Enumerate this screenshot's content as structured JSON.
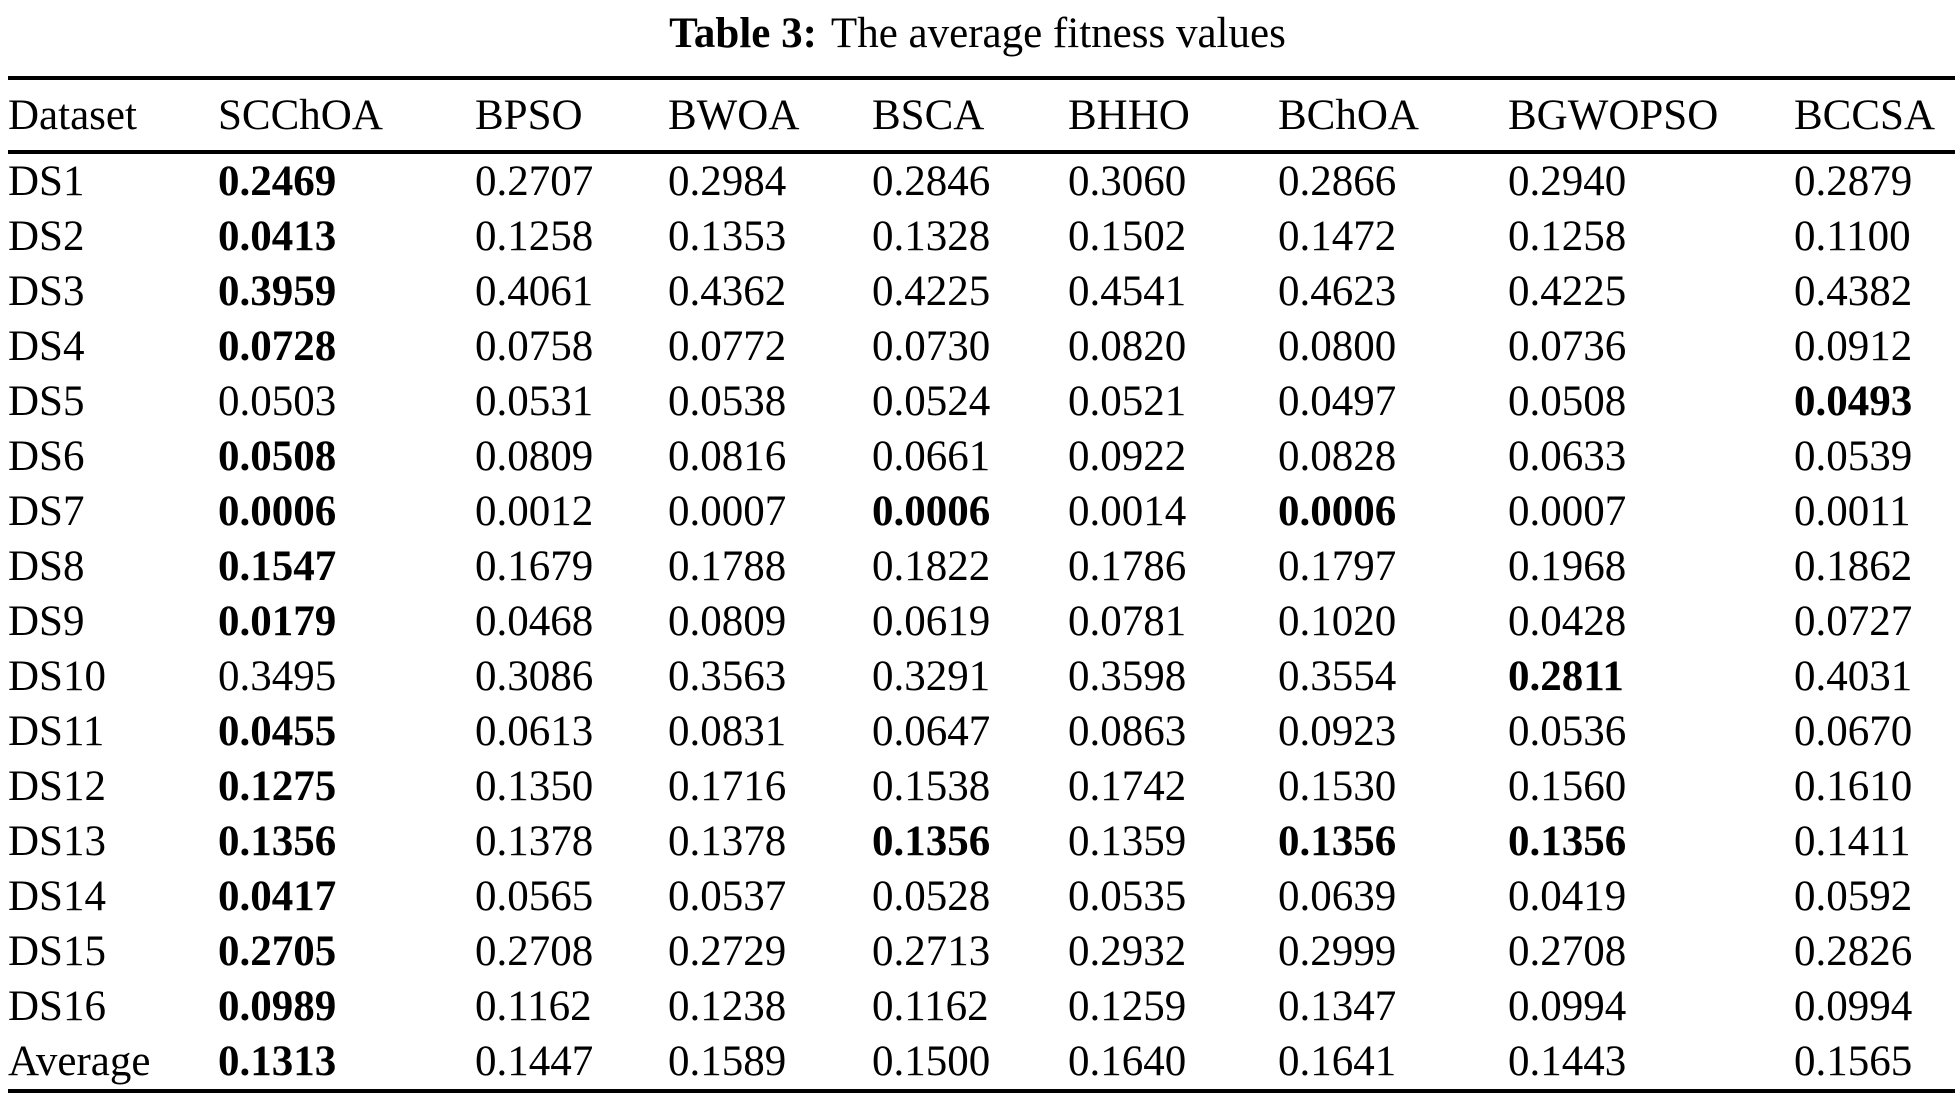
{
  "colors": {
    "background": "#ffffff",
    "text": "#000000",
    "rule": "#000000"
  },
  "caption": {
    "label": "Table 3:",
    "text": "The average fitness values"
  },
  "table": {
    "columns": [
      "Dataset",
      "SCChOA",
      "BPSO",
      "BWOA",
      "BSCA",
      "BHHO",
      "BChOA",
      "BGWOPSO",
      "BCCSA"
    ],
    "rows": [
      {
        "dataset": "DS1",
        "values": [
          "0.2469",
          "0.2707",
          "0.2984",
          "0.2846",
          "0.3060",
          "0.2866",
          "0.2940",
          "0.2879"
        ],
        "bold_indices": [
          0
        ]
      },
      {
        "dataset": "DS2",
        "values": [
          "0.0413",
          "0.1258",
          "0.1353",
          "0.1328",
          "0.1502",
          "0.1472",
          "0.1258",
          "0.1100"
        ],
        "bold_indices": [
          0
        ]
      },
      {
        "dataset": "DS3",
        "values": [
          "0.3959",
          "0.4061",
          "0.4362",
          "0.4225",
          "0.4541",
          "0.4623",
          "0.4225",
          "0.4382"
        ],
        "bold_indices": [
          0
        ]
      },
      {
        "dataset": "DS4",
        "values": [
          "0.0728",
          "0.0758",
          "0.0772",
          "0.0730",
          "0.0820",
          "0.0800",
          "0.0736",
          "0.0912"
        ],
        "bold_indices": [
          0
        ]
      },
      {
        "dataset": "DS5",
        "values": [
          "0.0503",
          "0.0531",
          "0.0538",
          "0.0524",
          "0.0521",
          "0.0497",
          "0.0508",
          "0.0493"
        ],
        "bold_indices": [
          7
        ]
      },
      {
        "dataset": "DS6",
        "values": [
          "0.0508",
          "0.0809",
          "0.0816",
          "0.0661",
          "0.0922",
          "0.0828",
          "0.0633",
          "0.0539"
        ],
        "bold_indices": [
          0
        ]
      },
      {
        "dataset": "DS7",
        "values": [
          "0.0006",
          "0.0012",
          "0.0007",
          "0.0006",
          "0.0014",
          "0.0006",
          "0.0007",
          "0.0011"
        ],
        "bold_indices": [
          0,
          3,
          5
        ]
      },
      {
        "dataset": "DS8",
        "values": [
          "0.1547",
          "0.1679",
          "0.1788",
          "0.1822",
          "0.1786",
          "0.1797",
          "0.1968",
          "0.1862"
        ],
        "bold_indices": [
          0
        ]
      },
      {
        "dataset": "DS9",
        "values": [
          "0.0179",
          "0.0468",
          "0.0809",
          "0.0619",
          "0.0781",
          "0.1020",
          "0.0428",
          "0.0727"
        ],
        "bold_indices": [
          0
        ]
      },
      {
        "dataset": "DS10",
        "values": [
          "0.3495",
          "0.3086",
          "0.3563",
          "0.3291",
          "0.3598",
          "0.3554",
          "0.2811",
          "0.4031"
        ],
        "bold_indices": [
          6
        ]
      },
      {
        "dataset": "DS11",
        "values": [
          "0.0455",
          "0.0613",
          "0.0831",
          "0.0647",
          "0.0863",
          "0.0923",
          "0.0536",
          "0.0670"
        ],
        "bold_indices": [
          0
        ]
      },
      {
        "dataset": "DS12",
        "values": [
          "0.1275",
          "0.1350",
          "0.1716",
          "0.1538",
          "0.1742",
          "0.1530",
          "0.1560",
          "0.1610"
        ],
        "bold_indices": [
          0
        ]
      },
      {
        "dataset": "DS13",
        "values": [
          "0.1356",
          "0.1378",
          "0.1378",
          "0.1356",
          "0.1359",
          "0.1356",
          "0.1356",
          "0.1411"
        ],
        "bold_indices": [
          0,
          3,
          5,
          6
        ]
      },
      {
        "dataset": "DS14",
        "values": [
          "0.0417",
          "0.0565",
          "0.0537",
          "0.0528",
          "0.0535",
          "0.0639",
          "0.0419",
          "0.0592"
        ],
        "bold_indices": [
          0
        ]
      },
      {
        "dataset": "DS15",
        "values": [
          "0.2705",
          "0.2708",
          "0.2729",
          "0.2713",
          "0.2932",
          "0.2999",
          "0.2708",
          "0.2826"
        ],
        "bold_indices": [
          0
        ]
      },
      {
        "dataset": "DS16",
        "values": [
          "0.0989",
          "0.1162",
          "0.1238",
          "0.1162",
          "0.1259",
          "0.1347",
          "0.0994",
          "0.0994"
        ],
        "bold_indices": [
          0
        ]
      },
      {
        "dataset": "Average",
        "values": [
          "0.1313",
          "0.1447",
          "0.1589",
          "0.1500",
          "0.1640",
          "0.1641",
          "0.1443",
          "0.1565"
        ],
        "bold_indices": [
          0
        ]
      }
    ]
  }
}
